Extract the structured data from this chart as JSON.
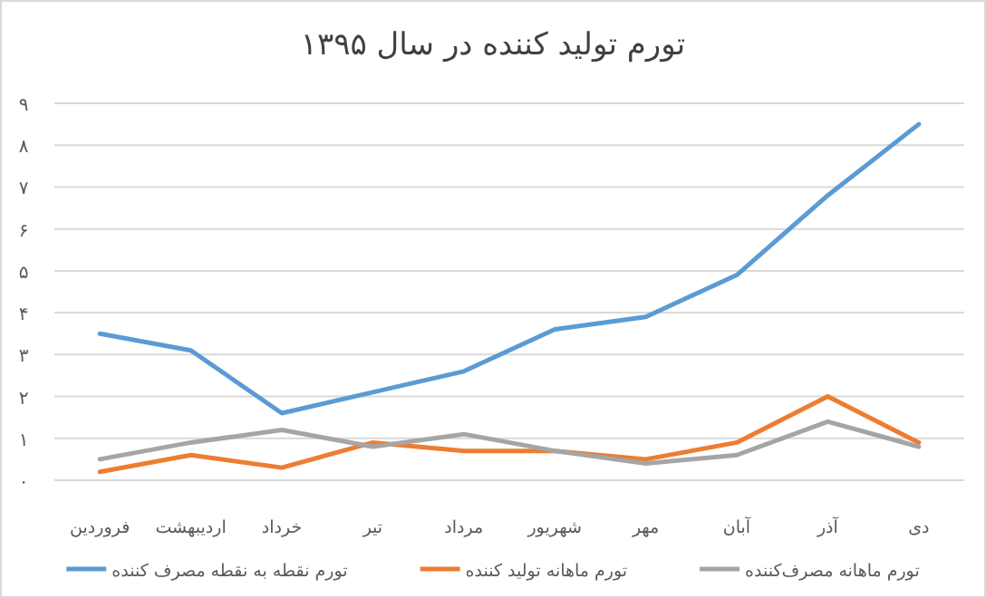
{
  "chart_data": {
    "type": "line",
    "title": "تورم تولید کننده در سال ۱۳۹۵",
    "categories": [
      "فروردین",
      "اردیبهشت",
      "خرداد",
      "تیر",
      "مرداد",
      "شهریور",
      "مهر",
      "آبان",
      "آذر",
      "دی"
    ],
    "series": [
      {
        "name": "تورم نقطه به نقطه مصرف کننده",
        "color": "#5b9bd5",
        "values": [
          3.5,
          3.1,
          1.6,
          2.1,
          2.6,
          3.6,
          3.9,
          4.9,
          6.8,
          8.5
        ]
      },
      {
        "name": "تورم ماهانه تولید کننده",
        "color": "#ed7d31",
        "values": [
          0.2,
          0.6,
          0.3,
          0.9,
          0.7,
          0.7,
          0.5,
          0.9,
          2.0,
          0.9
        ]
      },
      {
        "name": "تورم ماهانه مصرف‌کننده",
        "color": "#a5a5a5",
        "values": [
          0.5,
          0.9,
          1.2,
          0.8,
          1.1,
          0.7,
          0.4,
          0.6,
          1.4,
          0.8
        ]
      }
    ],
    "ylim": [
      0,
      9
    ],
    "yticks": [
      {
        "value": 0,
        "label": "۰"
      },
      {
        "value": 1,
        "label": "۱"
      },
      {
        "value": 2,
        "label": "۲"
      },
      {
        "value": 3,
        "label": "۳"
      },
      {
        "value": 4,
        "label": "۴"
      },
      {
        "value": 5,
        "label": "۵"
      },
      {
        "value": 6,
        "label": "۶"
      },
      {
        "value": 7,
        "label": "۷"
      },
      {
        "value": 8,
        "label": "۸"
      },
      {
        "value": 9,
        "label": "۹"
      }
    ],
    "grid": "y",
    "legend": "bottom",
    "marker": "none",
    "line_style": "solid"
  }
}
